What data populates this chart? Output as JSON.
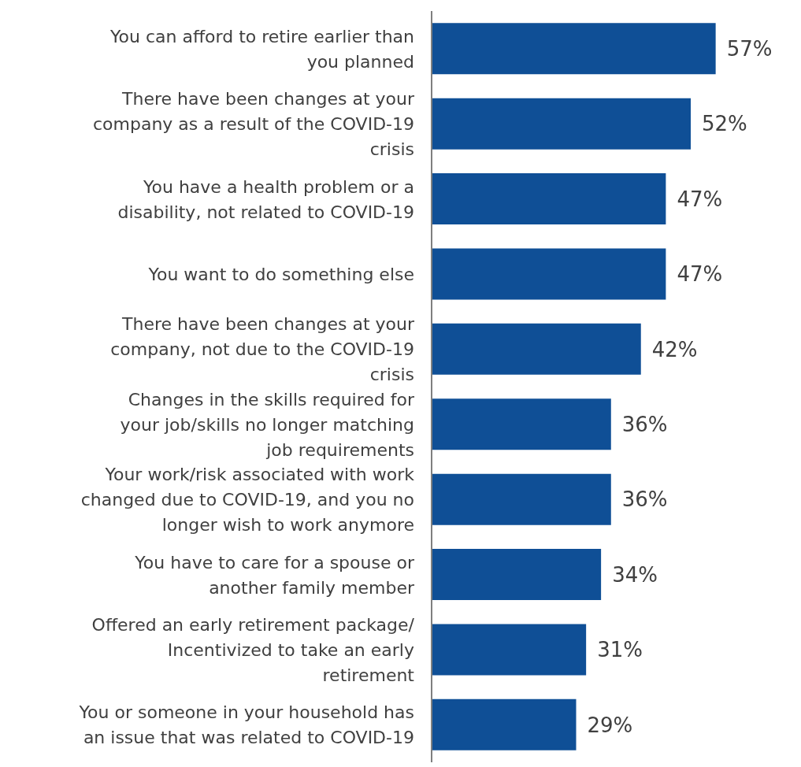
{
  "chart_data": {
    "type": "bar",
    "orientation": "horizontal",
    "categories": [
      "You can afford to retire earlier than you planned",
      "There have been changes at your company as a result of the COVID-19 crisis",
      "You have a health problem or a disability, not related to COVID-19",
      "You want to do something else",
      "There have been changes at your company, not due to the COVID-19 crisis",
      "Changes in the skills required for your job/skills no longer matching job requirements",
      "Your work/risk associated with work changed due to COVID-19, and you no longer wish to work anymore",
      "You have to care for a spouse or another family member",
      "Offered an early retirement package/ Incentivized to take an early retirement",
      "You or someone in your household has an issue that was related to COVID-19"
    ],
    "values": [
      57,
      52,
      47,
      47,
      42,
      36,
      36,
      34,
      31,
      29
    ],
    "value_labels": [
      "57%",
      "52%",
      "47%",
      "47%",
      "42%",
      "36%",
      "36%",
      "34%",
      "31%",
      "29%"
    ],
    "color": "#0f4f96"
  }
}
